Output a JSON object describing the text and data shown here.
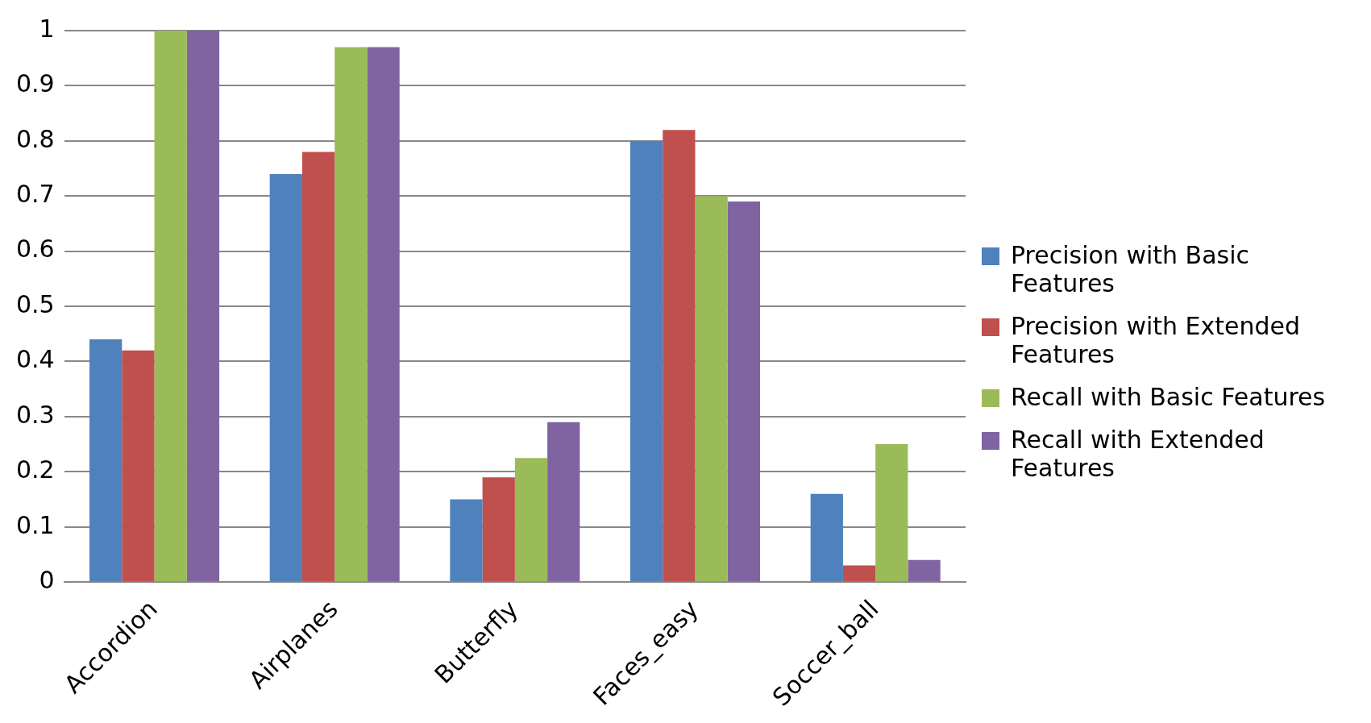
{
  "chart_data": {
    "type": "bar",
    "categories": [
      "Accordion",
      "Airplanes",
      "Butterfly",
      "Faces_easy",
      "Soccer_ball"
    ],
    "series": [
      {
        "name": "Precision with Basic Features",
        "color": "#4f81bd",
        "values": [
          0.44,
          0.74,
          0.15,
          0.8,
          0.16
        ]
      },
      {
        "name": "Precision with Extended Features",
        "color": "#c0504d",
        "values": [
          0.42,
          0.78,
          0.19,
          0.82,
          0.03
        ]
      },
      {
        "name": "Recall with Basic Features",
        "color": "#9bbb59",
        "values": [
          1,
          0.97,
          0.225,
          0.7,
          0.25
        ]
      },
      {
        "name": "Recall with Extended Features",
        "color": "#8064a2",
        "values": [
          1,
          0.97,
          0.29,
          0.69,
          0.04
        ]
      }
    ],
    "ylim": [
      0,
      1
    ],
    "yticks": [
      0,
      0.1,
      0.2,
      0.3,
      0.4,
      0.5,
      0.6,
      0.7,
      0.8,
      0.9,
      1
    ],
    "grid": "y",
    "legend": "right"
  }
}
